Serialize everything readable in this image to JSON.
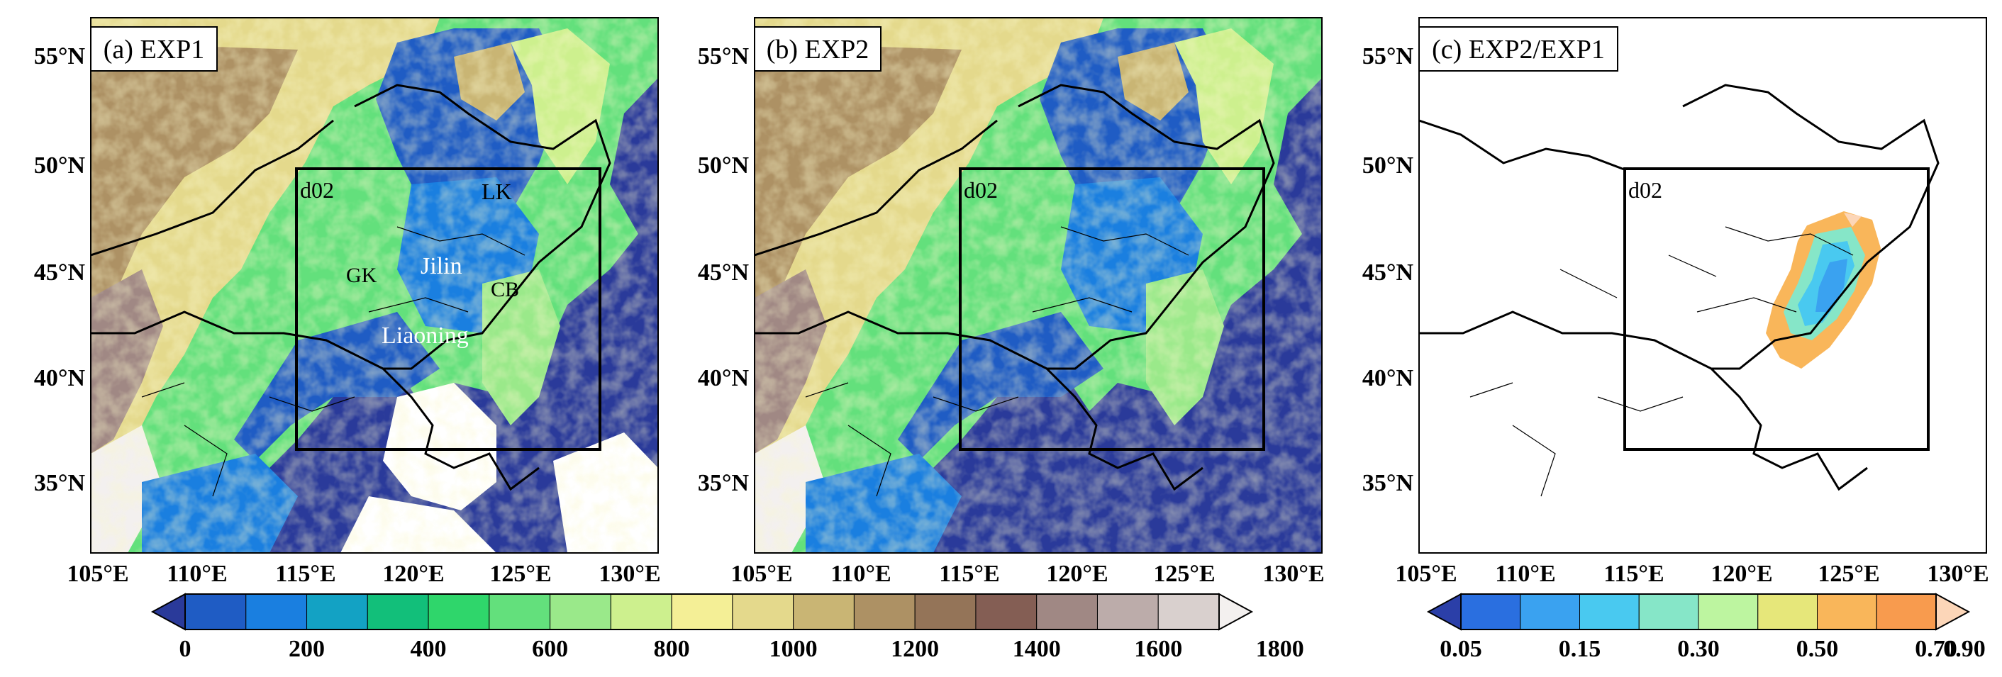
{
  "panels": [
    {
      "title": "(a) EXP1",
      "box_label": "d02",
      "region_labels": [
        "LK",
        "Jilin",
        "GK",
        "CB",
        "Liaoning"
      ],
      "field": "topography"
    },
    {
      "title": "(b) EXP2",
      "box_label": "d02",
      "region_labels": [],
      "field": "topography"
    },
    {
      "title": "(c) EXP2/EXP1",
      "box_label": "d02",
      "region_labels": [],
      "field": "ratio"
    }
  ],
  "lat_ticks": [
    "55°N",
    "50°N",
    "45°N",
    "40°N",
    "35°N"
  ],
  "lon_ticks": [
    "105°E",
    "110°E",
    "115°E",
    "120°E",
    "125°E",
    "130°E"
  ],
  "colorbar_topo": {
    "labels": [
      "0",
      "200",
      "400",
      "600",
      "800",
      "1000",
      "1200",
      "1400",
      "1600",
      "1800"
    ],
    "colors": [
      "#2a3a9a",
      "#1f5cc4",
      "#1a7fe0",
      "#13a2c4",
      "#12bf7a",
      "#2fd66b",
      "#63e07c",
      "#9ae98a",
      "#cdf08e",
      "#f4ef96",
      "#e4d98c",
      "#c9b574",
      "#ad9164",
      "#947458",
      "#845e54",
      "#a08884",
      "#bcacaa",
      "#d9d0ce",
      "#f3f0ef"
    ]
  },
  "colorbar_ratio": {
    "labels": [
      "0.05",
      "0.15",
      "0.30",
      "0.50",
      "0.70",
      "0.90"
    ],
    "colors": [
      "#2b3fa8",
      "#2a6fe0",
      "#3aa2f0",
      "#49c9f0",
      "#86e6c8",
      "#bdf5a0",
      "#e6e77a",
      "#f9b65a",
      "#f89b4e",
      "#fcd6b8"
    ]
  }
}
